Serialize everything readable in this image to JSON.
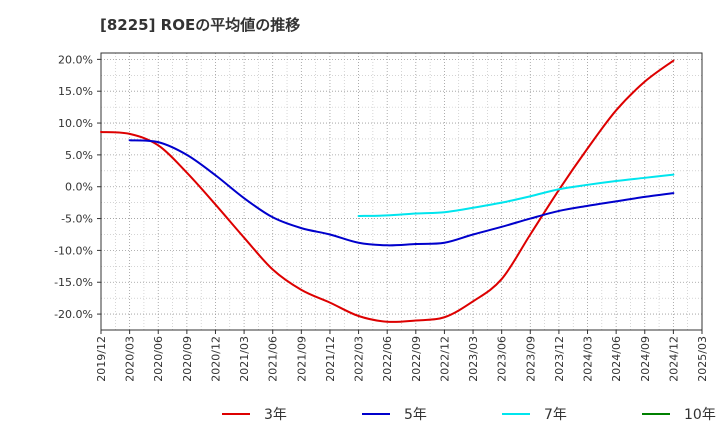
{
  "title": "[8225]  ROEの平均値の推移",
  "chart_data": {
    "type": "line",
    "title": "[8225]  ROEの平均値の推移",
    "xlabel": "",
    "ylabel": "",
    "ylim": [
      -22.5,
      21.0
    ],
    "y_ticks": [
      20,
      15,
      10,
      5,
      0,
      -5,
      -10,
      -15,
      -20
    ],
    "y_tick_labels": [
      "20.0%",
      "15.0%",
      "10.0%",
      "5.0%",
      "0.0%",
      "-5.0%",
      "-10.0%",
      "-15.0%",
      "-20.0%"
    ],
    "x_tick_labels": [
      "2019/12",
      "2020/03",
      "2020/06",
      "2020/09",
      "2020/12",
      "2021/03",
      "2021/06",
      "2021/09",
      "2021/12",
      "2022/03",
      "2022/06",
      "2022/09",
      "2022/12",
      "2023/03",
      "2023/06",
      "2023/09",
      "2023/12",
      "2024/03",
      "2024/06",
      "2024/09",
      "2024/12",
      "2025/03"
    ],
    "grid": true,
    "legend_position": "bottom",
    "series": [
      {
        "name": "3年",
        "color": "#dd0000",
        "points": [
          [
            "2019/12",
            8.6
          ],
          [
            "2020/03",
            8.3
          ],
          [
            "2020/06",
            6.5
          ],
          [
            "2020/09",
            2.2
          ],
          [
            "2020/12",
            -2.8
          ],
          [
            "2021/03",
            -8.0
          ],
          [
            "2021/06",
            -13.0
          ],
          [
            "2021/09",
            -16.2
          ],
          [
            "2021/12",
            -18.2
          ],
          [
            "2022/03",
            -20.3
          ],
          [
            "2022/06",
            -21.2
          ],
          [
            "2022/09",
            -21.0
          ],
          [
            "2022/12",
            -20.5
          ],
          [
            "2023/03",
            -18.0
          ],
          [
            "2023/06",
            -14.5
          ],
          [
            "2023/09",
            -7.5
          ],
          [
            "2023/12",
            -0.5
          ],
          [
            "2024/03",
            6.0
          ],
          [
            "2024/06",
            12.0
          ],
          [
            "2024/09",
            16.5
          ],
          [
            "2024/12",
            19.8
          ]
        ]
      },
      {
        "name": "5年",
        "color": "#0000cc",
        "points": [
          [
            "2020/03",
            7.3
          ],
          [
            "2020/06",
            7.0
          ],
          [
            "2020/09",
            5.0
          ],
          [
            "2020/12",
            1.8
          ],
          [
            "2021/03",
            -1.8
          ],
          [
            "2021/06",
            -4.8
          ],
          [
            "2021/09",
            -6.5
          ],
          [
            "2021/12",
            -7.5
          ],
          [
            "2022/03",
            -8.8
          ],
          [
            "2022/06",
            -9.2
          ],
          [
            "2022/09",
            -9.0
          ],
          [
            "2022/12",
            -8.8
          ],
          [
            "2023/03",
            -7.5
          ],
          [
            "2023/06",
            -6.3
          ],
          [
            "2023/09",
            -5.0
          ],
          [
            "2023/12",
            -3.8
          ],
          [
            "2024/03",
            -3.0
          ],
          [
            "2024/06",
            -2.3
          ],
          [
            "2024/09",
            -1.6
          ],
          [
            "2024/12",
            -1.0
          ]
        ]
      },
      {
        "name": "7年",
        "color": "#00e5ee",
        "points": [
          [
            "2022/03",
            -4.6
          ],
          [
            "2022/06",
            -4.5
          ],
          [
            "2022/09",
            -4.2
          ],
          [
            "2022/12",
            -4.0
          ],
          [
            "2023/03",
            -3.3
          ],
          [
            "2023/06",
            -2.5
          ],
          [
            "2023/09",
            -1.5
          ],
          [
            "2023/12",
            -0.4
          ],
          [
            "2024/03",
            0.3
          ],
          [
            "2024/06",
            0.9
          ],
          [
            "2024/09",
            1.4
          ],
          [
            "2024/12",
            1.9
          ]
        ]
      },
      {
        "name": "10年",
        "color": "#008000",
        "points": []
      }
    ]
  }
}
